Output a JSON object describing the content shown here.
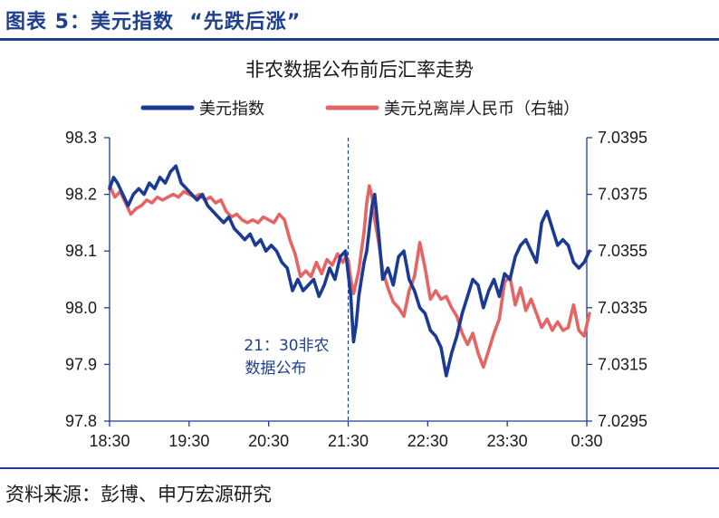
{
  "header": {
    "title": "图表 5：美元指数  “先跌后涨”"
  },
  "footer": {
    "source": "资料来源：彭博、申万宏源研究"
  },
  "colors": {
    "accent": "#1f3f8f",
    "series_left": "#1a3a94",
    "series_right": "#e56565",
    "axis": "#1f3f8f"
  },
  "chart_data": {
    "type": "line",
    "title": "非农数据公布前后汇率走势",
    "x_ticks": [
      "18:30",
      "19:30",
      "20:30",
      "21:30",
      "22:30",
      "23:30",
      "0:30"
    ],
    "y_left": {
      "lim": [
        97.8,
        98.3
      ],
      "ticks": [
        "97.8",
        "97.9",
        "98.0",
        "98.1",
        "98.2",
        "98.3"
      ]
    },
    "y_right": {
      "lim": [
        7.0295,
        7.0395
      ],
      "ticks": [
        "7.0295",
        "7.0315",
        "7.0335",
        "7.0355",
        "7.0375",
        "7.0395"
      ]
    },
    "annotation": {
      "x": "21:30",
      "line1": "21：30非农",
      "line2": "数据公布"
    },
    "series": [
      {
        "name": "美元指数",
        "axis": "left",
        "color": "#1a3a94",
        "x_minutes": [
          0,
          3,
          6,
          10,
          14,
          18,
          22,
          26,
          30,
          34,
          38,
          42,
          46,
          50,
          54,
          58,
          62,
          66,
          70,
          74,
          78,
          82,
          86,
          90,
          94,
          98,
          102,
          106,
          110,
          114,
          118,
          122,
          126,
          130,
          134,
          138,
          142,
          146,
          150,
          154,
          158,
          162,
          166,
          170,
          174,
          178,
          180,
          182,
          184,
          186,
          188,
          190,
          192,
          194,
          196,
          198,
          200,
          203,
          206,
          210,
          214,
          218,
          222,
          226,
          230,
          234,
          238,
          242,
          246,
          250,
          254,
          258,
          262,
          266,
          270,
          274,
          278,
          282,
          286,
          290,
          294,
          298,
          302,
          306,
          310,
          314,
          318,
          322,
          326,
          330,
          334,
          338,
          342,
          346,
          350,
          354,
          358,
          362
        ],
        "values": [
          98.21,
          98.23,
          98.22,
          98.2,
          98.18,
          98.2,
          98.21,
          98.2,
          98.22,
          98.21,
          98.23,
          98.22,
          98.24,
          98.25,
          98.22,
          98.21,
          98.2,
          98.19,
          98.2,
          98.18,
          98.17,
          98.16,
          98.15,
          98.16,
          98.14,
          98.13,
          98.12,
          98.13,
          98.11,
          98.12,
          98.1,
          98.11,
          98.1,
          98.08,
          98.07,
          98.03,
          98.05,
          98.03,
          98.04,
          98.05,
          98.02,
          98.04,
          98.07,
          98.05,
          98.09,
          98.1,
          98.06,
          98.02,
          97.94,
          97.97,
          98.02,
          98.05,
          98.08,
          98.1,
          98.14,
          98.18,
          98.2,
          98.13,
          98.05,
          98.07,
          98.04,
          98.09,
          98.1,
          98.05,
          98.03,
          98.0,
          97.99,
          97.96,
          97.95,
          97.93,
          97.88,
          97.92,
          97.95,
          97.99,
          98.02,
          98.05,
          98.04,
          98.0,
          98.03,
          98.05,
          98.02,
          98.06,
          98.05,
          98.09,
          98.11,
          98.12,
          98.1,
          98.08,
          98.15,
          98.17,
          98.14,
          98.11,
          98.12,
          98.11,
          98.08,
          98.07,
          98.08,
          98.1
        ]
      },
      {
        "name": "美元兑离岸人民币（右轴）",
        "axis": "right",
        "color": "#e56565",
        "x_minutes": [
          0,
          4,
          8,
          12,
          16,
          20,
          24,
          28,
          32,
          36,
          40,
          44,
          48,
          52,
          56,
          60,
          64,
          68,
          72,
          76,
          80,
          84,
          88,
          92,
          96,
          100,
          104,
          108,
          112,
          116,
          120,
          124,
          128,
          132,
          136,
          140,
          144,
          148,
          152,
          156,
          160,
          164,
          168,
          172,
          176,
          178,
          180,
          182,
          184,
          186,
          188,
          190,
          192,
          194,
          196,
          198,
          200,
          203,
          206,
          210,
          214,
          218,
          222,
          226,
          230,
          234,
          238,
          242,
          246,
          250,
          254,
          258,
          262,
          266,
          270,
          274,
          278,
          282,
          286,
          290,
          294,
          298,
          302,
          306,
          310,
          314,
          318,
          322,
          326,
          330,
          334,
          338,
          342,
          346,
          350,
          354,
          358,
          362
        ],
        "values": [
          7.0378,
          7.0374,
          7.0376,
          7.0372,
          7.0368,
          7.037,
          7.0371,
          7.0373,
          7.0372,
          7.0374,
          7.0373,
          7.0374,
          7.0375,
          7.0374,
          7.0376,
          7.0375,
          7.0374,
          7.0375,
          7.0373,
          7.0374,
          7.0372,
          7.0373,
          7.0369,
          7.0367,
          7.0368,
          7.0366,
          7.0365,
          7.0366,
          7.0365,
          7.0367,
          7.0366,
          7.0365,
          7.0368,
          7.0366,
          7.0359,
          7.0354,
          7.0346,
          7.0348,
          7.0346,
          7.0351,
          7.0347,
          7.0352,
          7.035,
          7.0354,
          7.0351,
          7.0353,
          7.0352,
          7.0345,
          7.034,
          7.0344,
          7.0348,
          7.0355,
          7.0362,
          7.0372,
          7.0378,
          7.0374,
          7.0366,
          7.0358,
          7.0348,
          7.0342,
          7.0337,
          7.0335,
          7.0332,
          7.0341,
          7.0346,
          7.0358,
          7.0349,
          7.0338,
          7.0341,
          7.0338,
          7.0339,
          7.0335,
          7.0332,
          7.0326,
          7.0322,
          7.0326,
          7.0319,
          7.0314,
          7.032,
          7.0326,
          7.0331,
          7.0344,
          7.0346,
          7.0336,
          7.0342,
          7.0334,
          7.0338,
          7.0333,
          7.0328,
          7.0331,
          7.0327,
          7.033,
          7.0327,
          7.0328,
          7.0336,
          7.0327,
          7.0325,
          7.0333
        ]
      }
    ]
  }
}
